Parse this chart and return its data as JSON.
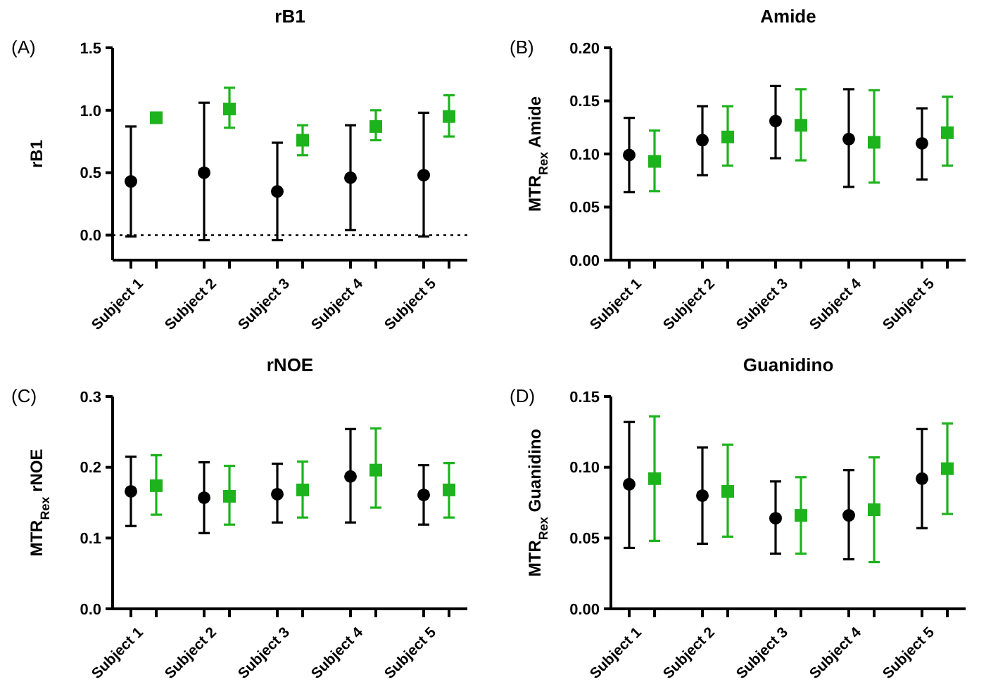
{
  "chart_data": [
    {
      "type": "scatter",
      "title": "rB1",
      "ylabel": "rB1",
      "annotations": [
        "(A)"
      ],
      "categories": [
        "Subject 1",
        null,
        "Subject 2",
        null,
        "Subject 3",
        null,
        "Subject 4",
        null,
        "Subject 5",
        null
      ],
      "series": [
        {
          "color": "#000000",
          "marker": "circle",
          "values": [
            0.43,
            null,
            0.5,
            null,
            0.35,
            null,
            0.46,
            null,
            0.48,
            null
          ],
          "errors": [
            [
              -0.01,
              0.87
            ],
            null,
            [
              -0.04,
              1.06
            ],
            null,
            [
              -0.04,
              0.74
            ],
            null,
            [
              0.04,
              0.88
            ],
            null,
            [
              -0.01,
              0.98
            ],
            null
          ]
        },
        {
          "color": "#1db31d",
          "marker": "square",
          "values": [
            null,
            0.94,
            null,
            1.01,
            null,
            0.76,
            null,
            0.87,
            null,
            0.95
          ],
          "errors": [
            null,
            null,
            null,
            [
              0.86,
              1.18
            ],
            null,
            [
              0.64,
              0.88
            ],
            null,
            [
              0.76,
              1.0
            ],
            null,
            [
              0.79,
              1.12
            ]
          ]
        }
      ],
      "ylim": [
        -0.2,
        1.5
      ],
      "yticks": [
        {
          "value": 0,
          "label": "0.0"
        },
        {
          "value": 0.5,
          "label": "0.5"
        },
        {
          "value": 1,
          "label": "1.0"
        },
        {
          "value": 1.5,
          "label": "1.5"
        }
      ],
      "ref_lines": [
        {
          "axis": "y",
          "value": 0,
          "line_style": "dotted",
          "color": "#000000"
        }
      ]
    },
    {
      "type": "scatter",
      "title": "Amide",
      "ylabel": "MTR$_{Rex}$ Amide",
      "annotations": [
        "(B)"
      ],
      "categories": [
        "Subject 1",
        null,
        "Subject 2",
        null,
        "Subject 3",
        null,
        "Subject 4",
        null,
        "Subject 5",
        null
      ],
      "series": [
        {
          "color": "#000000",
          "marker": "circle",
          "values": [
            0.099,
            null,
            0.113,
            null,
            0.131,
            null,
            0.114,
            null,
            0.11,
            null
          ],
          "errors": [
            [
              0.064,
              0.134
            ],
            null,
            [
              0.08,
              0.145
            ],
            null,
            [
              0.096,
              0.164
            ],
            null,
            [
              0.069,
              0.161
            ],
            null,
            [
              0.076,
              0.143
            ],
            null
          ]
        },
        {
          "color": "#1db31d",
          "marker": "square",
          "values": [
            null,
            0.093,
            null,
            0.116,
            null,
            0.127,
            null,
            0.111,
            null,
            0.12
          ],
          "errors": [
            null,
            [
              0.065,
              0.122
            ],
            null,
            [
              0.089,
              0.145
            ],
            null,
            [
              0.094,
              0.161
            ],
            null,
            [
              0.073,
              0.16
            ],
            null,
            [
              0.089,
              0.154
            ]
          ]
        }
      ],
      "ylim": [
        0,
        0.2
      ],
      "yticks": [
        {
          "value": 0,
          "label": "0.00"
        },
        {
          "value": 0.05,
          "label": "0.05"
        },
        {
          "value": 0.1,
          "label": "0.10"
        },
        {
          "value": 0.15,
          "label": "0.15"
        },
        {
          "value": 0.2,
          "label": "0.20"
        }
      ]
    },
    {
      "type": "scatter",
      "title": "rNOE",
      "ylabel": "MTR$_{Rex}$ rNOE",
      "annotations": [
        "(C)"
      ],
      "categories": [
        "Subject 1",
        null,
        "Subject 2",
        null,
        "Subject 3",
        null,
        "Subject 4",
        null,
        "Subject 5",
        null
      ],
      "series": [
        {
          "color": "#000000",
          "marker": "circle",
          "values": [
            0.166,
            null,
            0.157,
            null,
            0.162,
            null,
            0.187,
            null,
            0.161,
            null
          ],
          "errors": [
            [
              0.117,
              0.215
            ],
            null,
            [
              0.107,
              0.207
            ],
            null,
            [
              0.122,
              0.205
            ],
            null,
            [
              0.122,
              0.254
            ],
            null,
            [
              0.119,
              0.203
            ],
            null
          ]
        },
        {
          "color": "#1db31d",
          "marker": "square",
          "values": [
            null,
            0.174,
            null,
            0.159,
            null,
            0.168,
            null,
            0.196,
            null,
            0.168
          ],
          "errors": [
            null,
            [
              0.133,
              0.217
            ],
            null,
            [
              0.119,
              0.202
            ],
            null,
            [
              0.129,
              0.208
            ],
            null,
            [
              0.143,
              0.255
            ],
            null,
            [
              0.129,
              0.206
            ]
          ]
        }
      ],
      "ylim": [
        0,
        0.3
      ],
      "yticks": [
        {
          "value": 0,
          "label": "0.0"
        },
        {
          "value": 0.1,
          "label": "0.1"
        },
        {
          "value": 0.2,
          "label": "0.2"
        },
        {
          "value": 0.3,
          "label": "0.3"
        }
      ]
    },
    {
      "type": "scatter",
      "title": "Guanidino",
      "ylabel": "MTR$_{Rex}$ Guanidino",
      "annotations": [
        "(D)"
      ],
      "categories": [
        "Subject 1",
        null,
        "Subject 2",
        null,
        "Subject 3",
        null,
        "Subject 4",
        null,
        "Subject 5",
        null
      ],
      "series": [
        {
          "color": "#000000",
          "marker": "circle",
          "values": [
            0.088,
            null,
            0.08,
            null,
            0.064,
            null,
            0.066,
            null,
            0.092,
            null
          ],
          "errors": [
            [
              0.043,
              0.132
            ],
            null,
            [
              0.046,
              0.114
            ],
            null,
            [
              0.039,
              0.09
            ],
            null,
            [
              0.035,
              0.098
            ],
            null,
            [
              0.057,
              0.127
            ],
            null
          ]
        },
        {
          "color": "#1db31d",
          "marker": "square",
          "values": [
            null,
            0.092,
            null,
            0.083,
            null,
            0.066,
            null,
            0.07,
            null,
            0.099
          ],
          "errors": [
            null,
            [
              0.048,
              0.136
            ],
            null,
            [
              0.051,
              0.116
            ],
            null,
            [
              0.039,
              0.093
            ],
            null,
            [
              0.033,
              0.107
            ],
            null,
            [
              0.067,
              0.131
            ]
          ]
        }
      ],
      "ylim": [
        0,
        0.15
      ],
      "yticks": [
        {
          "value": 0,
          "label": "0.00"
        },
        {
          "value": 0.05,
          "label": "0.05"
        },
        {
          "value": 0.1,
          "label": "0.10"
        },
        {
          "value": 0.15,
          "label": "0.15"
        }
      ]
    }
  ]
}
